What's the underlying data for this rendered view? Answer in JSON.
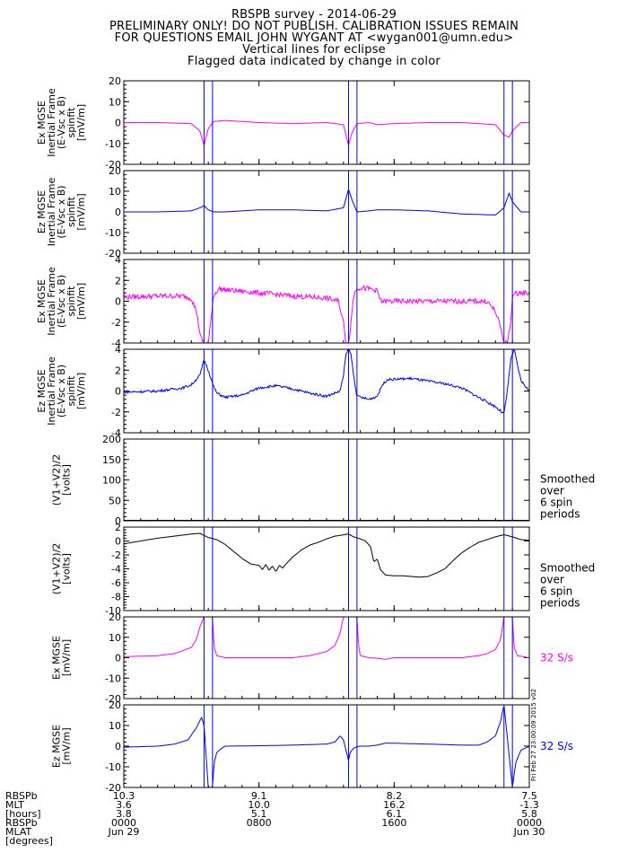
{
  "header": {
    "title": "RBSPB survey - 2014-06-29",
    "line2": "PRELIMINARY ONLY! DO NOT PUBLISH. CALIBRATION ISSUES REMAIN",
    "line3": "FOR QUESTIONS EMAIL JOHN WYGANT AT <wygan001@umn.edu>",
    "line4": "Vertical lines for eclipse",
    "line5": "Flagged data indicated by change in color"
  },
  "colors": {
    "magenta": "#ff00ff",
    "blue": "#0000ff",
    "black": "#000000",
    "eclipse": "#0000ff"
  },
  "eclipse_lines_hours": [
    4.75,
    5.25,
    13.3,
    13.8,
    22.5,
    23.0
  ],
  "timestamp_label": "Fri Feb 27 23:00:09 2015 v02",
  "chart_data": [
    {
      "type": "line",
      "id": "p1",
      "color": "magenta",
      "ylabel": [
        "Ex MGSE",
        "Inertial Frame",
        "(E-Vsc x B)",
        "spinfit",
        "[mV/m]"
      ],
      "ylim": [
        -20,
        20
      ],
      "yticks": [
        -20,
        -10,
        0,
        10,
        20
      ],
      "ytick_labels": [
        "-20",
        "-10",
        "0",
        "10",
        "20"
      ],
      "x": [
        0,
        2,
        4,
        4.5,
        4.75,
        5.0,
        5.3,
        6,
        8,
        10,
        12,
        13.0,
        13.3,
        13.5,
        13.8,
        14.5,
        15,
        16,
        18,
        20,
        22,
        22.5,
        22.8,
        23.0,
        23.5,
        24
      ],
      "y": [
        0,
        0,
        -0.5,
        -4,
        -11,
        -3,
        0.5,
        1,
        0,
        -0.5,
        0,
        -1,
        -11,
        -5,
        -0.5,
        0,
        -1,
        -0.5,
        0,
        0,
        -1,
        -6,
        -7,
        -4,
        0,
        0
      ]
    },
    {
      "type": "line",
      "id": "p2",
      "color": "blue",
      "ylabel": [
        "Ez MGSE",
        "Inertial Frame",
        "(E-Vsc x B)",
        "spinfit",
        "[mV/m]"
      ],
      "ylim": [
        -20,
        20
      ],
      "yticks": [
        -20,
        -10,
        0,
        10,
        20
      ],
      "ytick_labels": [
        "-20",
        "-10",
        "0",
        "10",
        "20"
      ],
      "x": [
        0,
        2,
        4,
        4.5,
        4.75,
        5.0,
        5.3,
        6,
        8,
        10,
        12,
        13.0,
        13.3,
        13.5,
        13.8,
        14.5,
        15,
        16,
        18,
        20,
        22,
        22.5,
        22.8,
        23.0,
        23.5,
        24
      ],
      "y": [
        0,
        0,
        0.5,
        2,
        3,
        1,
        0,
        0,
        1,
        1,
        0.5,
        2,
        11,
        6,
        0,
        0.5,
        1,
        1,
        0.5,
        -1,
        -1.5,
        2,
        9,
        5,
        0,
        0
      ]
    },
    {
      "type": "line",
      "id": "p3",
      "color": "magenta",
      "noise": 0.25,
      "ylabel": [
        "Ex MGSE",
        "Inertial Frame",
        "(E-Vsc x B)",
        "spinfit",
        "[mV/m]"
      ],
      "ylim": [
        -4,
        4
      ],
      "yticks": [
        -4,
        -2,
        0,
        2,
        4
      ],
      "ytick_labels": [
        "-4",
        "-2",
        "0",
        "2",
        "4"
      ],
      "x": [
        0,
        2,
        3.5,
        4,
        4.3,
        4.55,
        4.75,
        5.0,
        5.15,
        5.3,
        5.6,
        6,
        8,
        10,
        12,
        12.7,
        13.0,
        13.15,
        13.3,
        13.45,
        13.6,
        13.8,
        14.5,
        15,
        15.2,
        16,
        18,
        20,
        21.5,
        22.0,
        22.3,
        22.5,
        22.7,
        22.9,
        23.0,
        23.3,
        24
      ],
      "y": [
        0.4,
        0.5,
        0.5,
        0.3,
        -1,
        -3.5,
        -4,
        -4,
        -2,
        0.5,
        1.2,
        1.1,
        0.8,
        0.5,
        0.3,
        0,
        -2,
        -4,
        -4,
        -2,
        0.5,
        1.3,
        1.2,
        1,
        0,
        0,
        0,
        0,
        0,
        -1,
        -2.5,
        -4,
        -4,
        -2,
        0.5,
        0.8,
        0.8
      ]
    },
    {
      "type": "line",
      "id": "p4",
      "color": "blue",
      "noise": 0.12,
      "ylabel": [
        "Ez MGSE",
        "Inertial Frame",
        "(E-Vsc x B)",
        "spinfit",
        "[mV/m]"
      ],
      "ylim": [
        -4,
        4
      ],
      "yticks": [
        -4,
        -2,
        0,
        2,
        4
      ],
      "ytick_labels": [
        "-4",
        "-2",
        "0",
        "2",
        "4"
      ],
      "x": [
        0,
        2,
        3.5,
        4,
        4.5,
        4.75,
        5.0,
        5.3,
        5.5,
        6,
        7,
        8,
        9,
        10,
        11,
        12,
        12.8,
        13.0,
        13.15,
        13.3,
        13.45,
        13.6,
        13.8,
        14.5,
        15,
        15.3,
        15.6,
        17,
        19,
        20,
        21,
        22,
        22.5,
        22.7,
        22.9,
        23.1,
        23.5,
        24
      ],
      "y": [
        -0.1,
        0,
        0.3,
        0.6,
        1.5,
        3,
        2,
        0.5,
        -0.2,
        -0.6,
        -0.4,
        0.3,
        0.5,
        0.2,
        -0.2,
        -0.5,
        0,
        1.5,
        3.5,
        4,
        3.5,
        1.5,
        -0.5,
        -0.8,
        -0.5,
        0.6,
        1.1,
        1.2,
        0.7,
        0.3,
        -0.6,
        -1.5,
        -2.2,
        0,
        3,
        4,
        1,
        0
      ]
    },
    {
      "type": "line",
      "id": "p5",
      "color": "black",
      "ylabel": [
        "(V1+V2)/2",
        "[volts]"
      ],
      "ylim": [
        0,
        200
      ],
      "yticks": [
        0,
        50,
        100,
        150,
        200
      ],
      "ytick_labels": [
        "0",
        "50",
        "100",
        "150",
        "200"
      ],
      "x": [
        0,
        24
      ],
      "y": [
        1,
        1
      ],
      "note": [
        "Smoothed",
        "over",
        "6 spin",
        "periods"
      ]
    },
    {
      "type": "line",
      "id": "p6",
      "color": "black",
      "ylabel": [
        "(V1+V2)/2",
        "[volts]"
      ],
      "ylim": [
        -10,
        2
      ],
      "yticks": [
        -10,
        -8,
        -6,
        -4,
        -2,
        0,
        2
      ],
      "ytick_labels": [
        "-10",
        "-8",
        "-6",
        "-4",
        "-2",
        "0",
        "2"
      ],
      "x": [
        0,
        1,
        2,
        3,
        4,
        4.5,
        5.0,
        5.5,
        6,
        6.5,
        7,
        7.5,
        8,
        8.2,
        8.4,
        8.6,
        8.8,
        9,
        9.2,
        9.4,
        9.6,
        9.8,
        10,
        10.5,
        11,
        11.5,
        12,
        12.5,
        13.3,
        13.6,
        14,
        14.3,
        14.6,
        14.8,
        15.0,
        15.2,
        15.5,
        16,
        16.5,
        17,
        17.5,
        18,
        18.5,
        19,
        19.5,
        20,
        20.5,
        21,
        21.5,
        22,
        22.5,
        23.0,
        23.5,
        24
      ],
      "y": [
        -0.4,
        0,
        0.4,
        0.7,
        1.0,
        1.1,
        0.5,
        0.2,
        -0.5,
        -1.5,
        -2.5,
        -3.3,
        -3.5,
        -4.1,
        -3.4,
        -4.2,
        -3.6,
        -4.4,
        -3.5,
        -3.9,
        -3.3,
        -2.8,
        -2.3,
        -1.3,
        -0.6,
        -0.2,
        0.3,
        0.7,
        1.0,
        0.6,
        0.3,
        0,
        -0.8,
        -3.0,
        -2.6,
        -4.2,
        -4.9,
        -5.0,
        -5.0,
        -5.1,
        -5.2,
        -5.1,
        -4.6,
        -4.0,
        -2.8,
        -1.7,
        -0.9,
        -0.2,
        0.2,
        0.6,
        0.9,
        0.6,
        0.2,
        0.1
      ],
      "note": [
        "Smoothed",
        "over",
        "6 spin",
        "periods"
      ]
    },
    {
      "type": "line",
      "id": "p7",
      "color": "magenta",
      "ylabel": [
        "Ex MGSE",
        "[mV/m]"
      ],
      "ylim": [
        -20,
        20
      ],
      "yticks": [
        -20,
        -10,
        0,
        10,
        20
      ],
      "ytick_labels": [
        "-20",
        "-10",
        "0",
        "10",
        "20"
      ],
      "x": [
        0,
        2,
        3,
        4,
        4.3,
        4.5,
        4.75,
        5.25,
        5.35,
        5.5,
        6,
        8,
        10,
        11,
        12,
        12.5,
        12.8,
        13.0,
        13.3,
        13.8,
        13.9,
        14.0,
        14.5,
        15,
        15.5,
        16,
        18,
        20,
        21,
        21.5,
        22,
        22.3,
        22.5,
        23.0,
        23.1,
        23.3,
        24
      ],
      "y": [
        0.5,
        1,
        2,
        5,
        9,
        15,
        20,
        20,
        5,
        1,
        0,
        0,
        0,
        1,
        3,
        6,
        12,
        20,
        20,
        20,
        5,
        1,
        0,
        -0.3,
        -0.8,
        0,
        0,
        0,
        1,
        2,
        4,
        9,
        20,
        20,
        5,
        1,
        0
      ],
      "note": [
        "32 S/s"
      ]
    },
    {
      "type": "line",
      "id": "p8",
      "color": "blue",
      "ylabel": [
        "Ez MGSE",
        "[mV/m]"
      ],
      "ylim": [
        -20,
        20
      ],
      "yticks": [
        -20,
        -10,
        0,
        10,
        20
      ],
      "ytick_labels": [
        "-20",
        "-10",
        "0",
        "10",
        "20"
      ],
      "x": [
        0,
        2,
        3,
        3.8,
        4.3,
        4.6,
        4.75,
        5.0,
        5.25,
        5.35,
        5.5,
        5.8,
        6,
        8,
        10,
        12,
        12.5,
        12.8,
        13.0,
        13.3,
        13.4,
        13.6,
        13.8,
        14.0,
        14.5,
        15,
        15.5,
        18,
        20,
        21,
        21.5,
        22,
        22.3,
        22.5,
        23.0,
        23.2,
        23.5,
        24
      ],
      "y": [
        -0.5,
        0,
        1,
        3,
        9,
        14,
        10,
        -20,
        -20,
        -8,
        -3,
        -1,
        0,
        0.2,
        0.5,
        1,
        2,
        5,
        3,
        -7,
        -3,
        -1,
        -0.3,
        0,
        0,
        0.5,
        1.5,
        1,
        0.5,
        0.5,
        2,
        5,
        12,
        20,
        -20,
        -8,
        -2,
        0
      ],
      "note": [
        "32 S/s"
      ]
    }
  ],
  "xaxis": {
    "row_labels": [
      "RBSPb",
      "MLT",
      "[hours]",
      "RBSPb",
      "MLAT",
      "[degrees]"
    ],
    "columns": [
      {
        "rows": [
          "10.3",
          "3.6",
          "3.8",
          "0000",
          "Jun 29"
        ]
      },
      {
        "rows": [
          "9.1",
          "10.0",
          "5.1",
          "0800",
          ""
        ]
      },
      {
        "rows": [
          "8.2",
          "16.2",
          "6.1",
          "1600",
          ""
        ]
      },
      {
        "rows": [
          "7.5",
          "-1.3",
          "5.8",
          "0000",
          "Jun 30"
        ]
      }
    ]
  }
}
